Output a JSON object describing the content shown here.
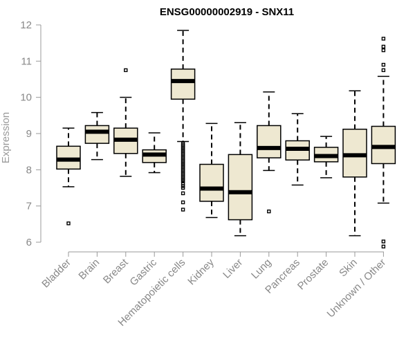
{
  "chart_data": {
    "type": "boxplot",
    "title": "ENSG00000002919 - SNX11",
    "xlabel": "",
    "ylabel": "Expression",
    "ylim": [
      6,
      12
    ],
    "yticks": [
      6,
      7,
      8,
      9,
      10,
      11,
      12
    ],
    "grid": false,
    "colors": {
      "box_fill": "#EEE8D1",
      "axis": "#999999",
      "tick_label": "#888888"
    },
    "categories": [
      "Bladder",
      "Brain",
      "Breast",
      "Gastric",
      "Hematopoietic cells",
      "Kidney",
      "Liver",
      "Lung",
      "Pancreas",
      "Prostate",
      "Skin",
      "Unknown / Other"
    ],
    "boxes": [
      {
        "min": 7.53,
        "q1": 8.02,
        "median": 8.28,
        "q3": 8.65,
        "max": 9.15,
        "outliers": [
          6.52
        ]
      },
      {
        "min": 8.28,
        "q1": 8.73,
        "median": 9.05,
        "q3": 9.22,
        "max": 9.58,
        "outliers": []
      },
      {
        "min": 7.82,
        "q1": 8.45,
        "median": 8.83,
        "q3": 9.15,
        "max": 10.0,
        "outliers": [
          10.75
        ]
      },
      {
        "min": 7.92,
        "q1": 8.2,
        "median": 8.42,
        "q3": 8.55,
        "max": 9.02,
        "outliers": []
      },
      {
        "min": 8.78,
        "q1": 9.95,
        "median": 10.45,
        "q3": 10.78,
        "max": 11.85,
        "outliers": [
          8.72,
          8.68,
          8.64,
          8.6,
          8.56,
          8.52,
          8.48,
          8.44,
          8.4,
          8.36,
          8.32,
          8.28,
          8.24,
          8.2,
          8.16,
          8.12,
          8.08,
          8.04,
          8.0,
          7.96,
          7.92,
          7.88,
          7.84,
          7.8,
          7.76,
          7.72,
          7.68,
          7.62,
          7.55,
          7.5,
          7.35,
          7.1,
          6.9
        ]
      },
      {
        "min": 6.68,
        "q1": 7.13,
        "median": 7.48,
        "q3": 8.15,
        "max": 9.28,
        "outliers": []
      },
      {
        "min": 6.18,
        "q1": 6.62,
        "median": 7.38,
        "q3": 8.42,
        "max": 9.3,
        "outliers": []
      },
      {
        "min": 7.98,
        "q1": 8.33,
        "median": 8.6,
        "q3": 9.22,
        "max": 10.15,
        "outliers": [
          6.85
        ]
      },
      {
        "min": 7.58,
        "q1": 8.27,
        "median": 8.58,
        "q3": 8.8,
        "max": 9.55,
        "outliers": []
      },
      {
        "min": 7.78,
        "q1": 8.22,
        "median": 8.38,
        "q3": 8.62,
        "max": 8.92,
        "outliers": []
      },
      {
        "min": 6.18,
        "q1": 7.8,
        "median": 8.4,
        "q3": 9.12,
        "max": 10.18,
        "outliers": []
      },
      {
        "min": 7.08,
        "q1": 8.17,
        "median": 8.63,
        "q3": 9.2,
        "max": 10.58,
        "outliers": [
          10.75,
          10.9,
          11.3,
          11.4,
          11.62,
          6.02,
          5.88
        ]
      }
    ]
  }
}
